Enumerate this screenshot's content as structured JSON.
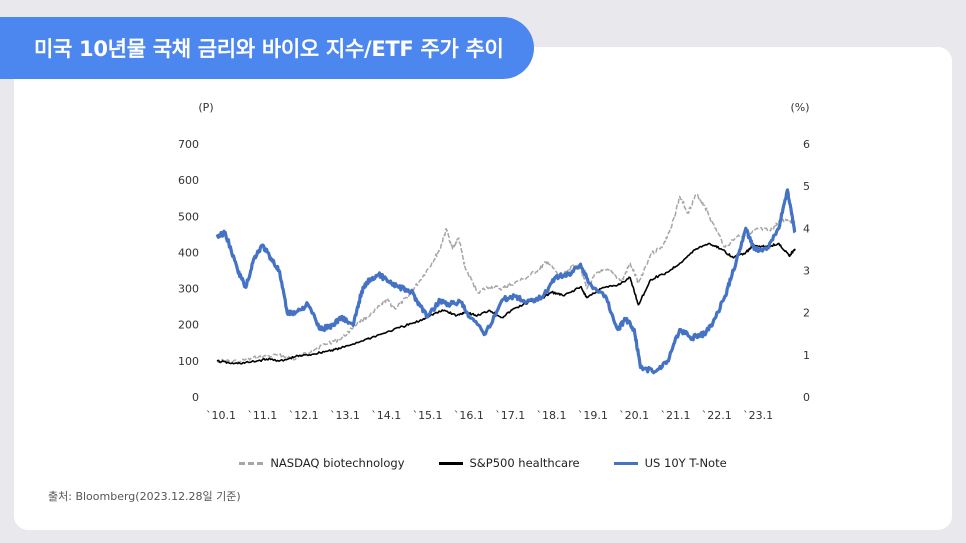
{
  "title": "미국 10년물 국채 금리와 바이오 지수/ETF 주가 추이",
  "source": "출처: Bloomberg(2023.12.28일 기준)",
  "chart_data": {
    "type": "line",
    "x_tick_labels": [
      "`10.1",
      "`11.1",
      "`12.1",
      "`13.1",
      "`14.1",
      "`15.1",
      "`16.1",
      "`17.1",
      "`18.1",
      "`19.1",
      "`20.1",
      "`21.1",
      "`22.1",
      "`23.1"
    ],
    "x_start": 2010.0,
    "x_end": 2023.99,
    "y_left": {
      "unit": "(P)",
      "range": [
        0,
        700
      ],
      "ticks": [
        0,
        100,
        200,
        300,
        400,
        500,
        600,
        700
      ]
    },
    "y_right": {
      "unit": "(%)",
      "range": [
        0,
        6
      ],
      "ticks": [
        0,
        1,
        2,
        3,
        4,
        5,
        6
      ]
    },
    "grid": false,
    "legend_position": "bottom-center",
    "series": [
      {
        "name": "NASDAQ biotechnology",
        "axis": "left",
        "color": "#a6a6a6",
        "style": "dashed",
        "points": [
          [
            2010.0,
            100
          ],
          [
            2010.5,
            98
          ],
          [
            2011.0,
            110
          ],
          [
            2011.5,
            115
          ],
          [
            2011.9,
            105
          ],
          [
            2012.3,
            130
          ],
          [
            2012.7,
            150
          ],
          [
            2013.0,
            160
          ],
          [
            2013.4,
            205
          ],
          [
            2013.8,
            235
          ],
          [
            2014.1,
            270
          ],
          [
            2014.3,
            245
          ],
          [
            2014.6,
            275
          ],
          [
            2014.9,
            320
          ],
          [
            2015.2,
            370
          ],
          [
            2015.4,
            410
          ],
          [
            2015.55,
            465
          ],
          [
            2015.7,
            410
          ],
          [
            2015.85,
            440
          ],
          [
            2016.0,
            360
          ],
          [
            2016.3,
            290
          ],
          [
            2016.6,
            305
          ],
          [
            2016.9,
            300
          ],
          [
            2017.1,
            310
          ],
          [
            2017.5,
            330
          ],
          [
            2017.8,
            355
          ],
          [
            2018.0,
            375
          ],
          [
            2018.3,
            330
          ],
          [
            2018.6,
            360
          ],
          [
            2018.8,
            360
          ],
          [
            2018.95,
            300
          ],
          [
            2019.2,
            345
          ],
          [
            2019.5,
            350
          ],
          [
            2019.8,
            320
          ],
          [
            2020.0,
            370
          ],
          [
            2020.2,
            315
          ],
          [
            2020.5,
            395
          ],
          [
            2020.8,
            420
          ],
          [
            2021.0,
            470
          ],
          [
            2021.2,
            555
          ],
          [
            2021.4,
            510
          ],
          [
            2021.6,
            560
          ],
          [
            2021.8,
            530
          ],
          [
            2022.0,
            480
          ],
          [
            2022.3,
            415
          ],
          [
            2022.6,
            445
          ],
          [
            2022.9,
            450
          ],
          [
            2023.1,
            465
          ],
          [
            2023.4,
            460
          ],
          [
            2023.6,
            485
          ],
          [
            2023.8,
            490
          ],
          [
            2023.99,
            480
          ]
        ]
      },
      {
        "name": "S&P500 healthcare",
        "axis": "left",
        "color": "#000000",
        "style": "solid",
        "points": [
          [
            2010.0,
            100
          ],
          [
            2010.4,
            92
          ],
          [
            2010.8,
            96
          ],
          [
            2011.2,
            105
          ],
          [
            2011.6,
            100
          ],
          [
            2011.9,
            112
          ],
          [
            2012.3,
            118
          ],
          [
            2012.7,
            128
          ],
          [
            2013.0,
            135
          ],
          [
            2013.5,
            155
          ],
          [
            2014.0,
            175
          ],
          [
            2014.5,
            195
          ],
          [
            2014.9,
            210
          ],
          [
            2015.2,
            228
          ],
          [
            2015.5,
            240
          ],
          [
            2015.8,
            225
          ],
          [
            2016.0,
            235
          ],
          [
            2016.3,
            225
          ],
          [
            2016.6,
            240
          ],
          [
            2016.9,
            220
          ],
          [
            2017.2,
            245
          ],
          [
            2017.6,
            265
          ],
          [
            2017.9,
            275
          ],
          [
            2018.1,
            290
          ],
          [
            2018.4,
            280
          ],
          [
            2018.8,
            305
          ],
          [
            2018.95,
            275
          ],
          [
            2019.3,
            300
          ],
          [
            2019.7,
            310
          ],
          [
            2020.0,
            330
          ],
          [
            2020.2,
            255
          ],
          [
            2020.5,
            325
          ],
          [
            2020.9,
            345
          ],
          [
            2021.2,
            370
          ],
          [
            2021.6,
            410
          ],
          [
            2021.9,
            425
          ],
          [
            2022.2,
            410
          ],
          [
            2022.5,
            385
          ],
          [
            2022.8,
            400
          ],
          [
            2023.0,
            420
          ],
          [
            2023.3,
            415
          ],
          [
            2023.6,
            425
          ],
          [
            2023.85,
            390
          ],
          [
            2023.99,
            410
          ]
        ]
      },
      {
        "name": "US 10Y T-Note",
        "axis": "right",
        "color": "#4472c4",
        "style": "solid",
        "points": [
          [
            2010.0,
            3.8
          ],
          [
            2010.2,
            3.9
          ],
          [
            2010.5,
            3.0
          ],
          [
            2010.7,
            2.6
          ],
          [
            2010.9,
            3.3
          ],
          [
            2011.1,
            3.6
          ],
          [
            2011.3,
            3.3
          ],
          [
            2011.5,
            3.0
          ],
          [
            2011.7,
            2.0
          ],
          [
            2011.9,
            2.0
          ],
          [
            2012.2,
            2.2
          ],
          [
            2012.5,
            1.6
          ],
          [
            2012.8,
            1.7
          ],
          [
            2013.0,
            1.9
          ],
          [
            2013.3,
            1.7
          ],
          [
            2013.5,
            2.5
          ],
          [
            2013.7,
            2.8
          ],
          [
            2013.9,
            2.9
          ],
          [
            2014.1,
            2.8
          ],
          [
            2014.4,
            2.6
          ],
          [
            2014.7,
            2.5
          ],
          [
            2014.9,
            2.2
          ],
          [
            2015.1,
            1.9
          ],
          [
            2015.4,
            2.3
          ],
          [
            2015.6,
            2.2
          ],
          [
            2015.9,
            2.25
          ],
          [
            2016.1,
            1.9
          ],
          [
            2016.5,
            1.5
          ],
          [
            2016.9,
            2.3
          ],
          [
            2017.2,
            2.4
          ],
          [
            2017.5,
            2.25
          ],
          [
            2017.9,
            2.4
          ],
          [
            2018.2,
            2.85
          ],
          [
            2018.5,
            2.9
          ],
          [
            2018.8,
            3.15
          ],
          [
            2019.0,
            2.7
          ],
          [
            2019.4,
            2.4
          ],
          [
            2019.7,
            1.6
          ],
          [
            2019.9,
            1.85
          ],
          [
            2020.1,
            1.6
          ],
          [
            2020.25,
            0.7
          ],
          [
            2020.6,
            0.6
          ],
          [
            2020.9,
            0.85
          ],
          [
            2021.2,
            1.6
          ],
          [
            2021.5,
            1.4
          ],
          [
            2021.8,
            1.5
          ],
          [
            2022.0,
            1.75
          ],
          [
            2022.3,
            2.4
          ],
          [
            2022.5,
            3.0
          ],
          [
            2022.8,
            4.0
          ],
          [
            2023.0,
            3.5
          ],
          [
            2023.3,
            3.5
          ],
          [
            2023.6,
            4.0
          ],
          [
            2023.8,
            4.9
          ],
          [
            2023.9,
            4.4
          ],
          [
            2023.99,
            3.9
          ]
        ]
      }
    ]
  }
}
